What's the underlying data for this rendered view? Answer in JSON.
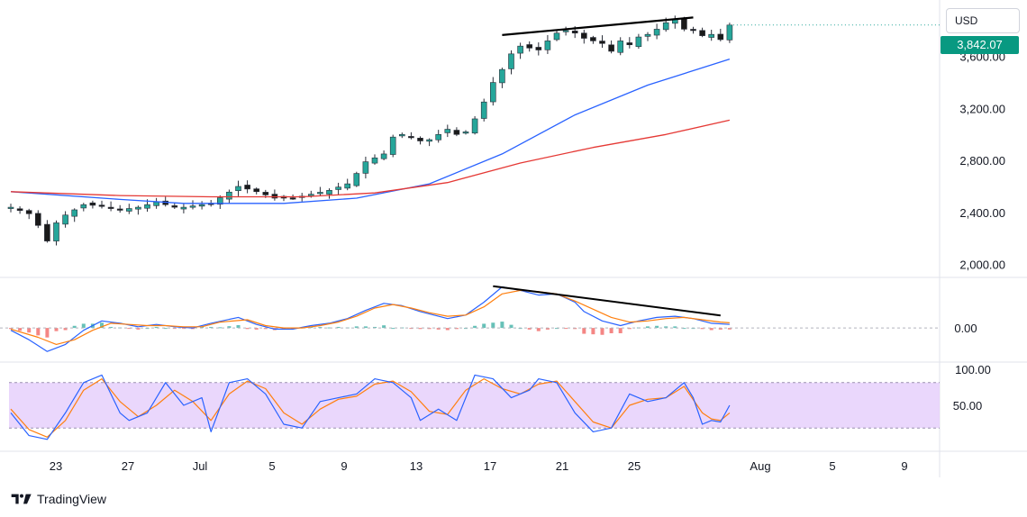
{
  "header": {
    "currency": "USD",
    "last_price": "3,842.07"
  },
  "brand": {
    "name": "TradingView",
    "logo_icon": "tradingview-logo-icon"
  },
  "colors": {
    "up": "#26a69a",
    "down": "#ef5350",
    "candle_body_down": "#1a1a1a",
    "ma_fast": "#2962ff",
    "ma_slow": "#e53935",
    "macd": "#2962ff",
    "signal": "#ff7f0e",
    "rsi_band": "#e6d0fb",
    "price_tag": "#089981",
    "trendline": "#000000"
  },
  "chart_data": [
    {
      "type": "candlestick",
      "title": "",
      "y_ticks": [
        "2,000.00",
        "2,400.00",
        "2,800.00",
        "3,200.00",
        "3,600.00"
      ],
      "ylim": [
        1900,
        4000
      ],
      "x_ticks": [
        "23",
        "27",
        "Jul",
        "5",
        "9",
        "13",
        "17",
        "21",
        "25",
        "Aug",
        "5",
        "9"
      ],
      "last_price": 3842.07,
      "close_path": [
        [
          0,
          2440
        ],
        [
          2,
          2390
        ],
        [
          3,
          2300
        ],
        [
          4,
          2180
        ],
        [
          5,
          2320
        ],
        [
          6,
          2380
        ],
        [
          8,
          2460
        ],
        [
          10,
          2450
        ],
        [
          12,
          2420
        ],
        [
          14,
          2440
        ],
        [
          16,
          2480
        ],
        [
          18,
          2440
        ],
        [
          19,
          2440
        ],
        [
          22,
          2470
        ],
        [
          25,
          2600
        ],
        [
          27,
          2560
        ],
        [
          29,
          2510
        ],
        [
          31,
          2510
        ],
        [
          33,
          2540
        ],
        [
          35,
          2570
        ],
        [
          37,
          2620
        ],
        [
          38,
          2700
        ],
        [
          39,
          2790
        ],
        [
          41,
          2850
        ],
        [
          42,
          2980
        ],
        [
          43,
          3000
        ],
        [
          45,
          2950
        ],
        [
          46,
          2960
        ],
        [
          48,
          3040
        ],
        [
          49,
          3000
        ],
        [
          50,
          3020
        ],
        [
          51,
          3120
        ],
        [
          52,
          3250
        ],
        [
          53,
          3400
        ],
        [
          54,
          3500
        ],
        [
          55,
          3620
        ],
        [
          56,
          3680
        ],
        [
          58,
          3650
        ],
        [
          59,
          3720
        ],
        [
          60,
          3780
        ],
        [
          61,
          3800
        ],
        [
          62,
          3780
        ],
        [
          63,
          3740
        ],
        [
          64,
          3720
        ],
        [
          65,
          3700
        ],
        [
          66,
          3640
        ],
        [
          67,
          3720
        ],
        [
          68,
          3690
        ],
        [
          69,
          3750
        ],
        [
          70,
          3770
        ],
        [
          71,
          3810
        ],
        [
          72,
          3860
        ],
        [
          73,
          3890
        ],
        [
          74,
          3810
        ],
        [
          75,
          3800
        ],
        [
          76,
          3760
        ],
        [
          77,
          3770
        ],
        [
          78,
          3730
        ],
        [
          79,
          3842
        ]
      ],
      "moving_averages": [
        {
          "points": [
            [
              0,
              2560
            ],
            [
              12,
              2500
            ],
            [
              19,
              2470
            ],
            [
              30,
              2470
            ],
            [
              38,
              2510
            ],
            [
              46,
              2620
            ],
            [
              54,
              2850
            ],
            [
              62,
              3150
            ],
            [
              70,
              3380
            ],
            [
              79,
              3580
            ]
          ]
        },
        {
          "points": [
            [
              0,
              2560
            ],
            [
              12,
              2530
            ],
            [
              22,
              2520
            ],
            [
              32,
              2520
            ],
            [
              40,
              2550
            ],
            [
              48,
              2630
            ],
            [
              56,
              2780
            ],
            [
              64,
              2900
            ],
            [
              72,
              3000
            ],
            [
              79,
              3110
            ]
          ]
        }
      ],
      "trendline": [
        [
          54,
          3765
        ],
        [
          75,
          3900
        ]
      ]
    },
    {
      "type": "macd",
      "zero_label": "0.00",
      "ylim": [
        -130,
        200
      ],
      "macd_line": [
        [
          0,
          -10
        ],
        [
          2,
          -50
        ],
        [
          4,
          -100
        ],
        [
          6,
          -70
        ],
        [
          8,
          -10
        ],
        [
          10,
          30
        ],
        [
          12,
          20
        ],
        [
          14,
          5
        ],
        [
          16,
          15
        ],
        [
          18,
          5
        ],
        [
          20,
          0
        ],
        [
          22,
          20
        ],
        [
          25,
          45
        ],
        [
          27,
          15
        ],
        [
          29,
          -5
        ],
        [
          31,
          -5
        ],
        [
          33,
          10
        ],
        [
          35,
          20
        ],
        [
          37,
          40
        ],
        [
          39,
          75
        ],
        [
          41,
          105
        ],
        [
          43,
          95
        ],
        [
          45,
          70
        ],
        [
          47,
          50
        ],
        [
          48,
          40
        ],
        [
          50,
          55
        ],
        [
          52,
          110
        ],
        [
          54,
          175
        ],
        [
          56,
          160
        ],
        [
          58,
          140
        ],
        [
          60,
          145
        ],
        [
          62,
          110
        ],
        [
          63,
          70
        ],
        [
          65,
          30
        ],
        [
          67,
          10
        ],
        [
          69,
          30
        ],
        [
          71,
          45
        ],
        [
          73,
          50
        ],
        [
          75,
          40
        ],
        [
          77,
          20
        ],
        [
          79,
          15
        ]
      ],
      "signal_line": [
        [
          0,
          -5
        ],
        [
          3,
          -40
        ],
        [
          5,
          -70
        ],
        [
          7,
          -50
        ],
        [
          9,
          -10
        ],
        [
          11,
          20
        ],
        [
          13,
          15
        ],
        [
          15,
          10
        ],
        [
          17,
          10
        ],
        [
          19,
          5
        ],
        [
          21,
          5
        ],
        [
          23,
          25
        ],
        [
          26,
          35
        ],
        [
          28,
          10
        ],
        [
          30,
          0
        ],
        [
          32,
          0
        ],
        [
          34,
          10
        ],
        [
          36,
          25
        ],
        [
          38,
          50
        ],
        [
          40,
          85
        ],
        [
          42,
          100
        ],
        [
          44,
          85
        ],
        [
          46,
          65
        ],
        [
          48,
          50
        ],
        [
          50,
          55
        ],
        [
          52,
          90
        ],
        [
          54,
          145
        ],
        [
          56,
          160
        ],
        [
          58,
          155
        ],
        [
          60,
          145
        ],
        [
          62,
          115
        ],
        [
          64,
          80
        ],
        [
          66,
          45
        ],
        [
          68,
          25
        ],
        [
          70,
          30
        ],
        [
          72,
          40
        ],
        [
          74,
          45
        ],
        [
          76,
          35
        ],
        [
          78,
          25
        ],
        [
          79,
          22
        ]
      ],
      "trendline": [
        [
          53,
          178
        ],
        [
          78,
          53
        ]
      ]
    },
    {
      "type": "stochastic",
      "y_ticks": [
        "100.00",
        "50.00"
      ],
      "ylim": [
        0,
        100
      ],
      "band": [
        20,
        80
      ],
      "k_line": [
        [
          0,
          40
        ],
        [
          2,
          10
        ],
        [
          4,
          5
        ],
        [
          6,
          40
        ],
        [
          8,
          80
        ],
        [
          10,
          90
        ],
        [
          12,
          40
        ],
        [
          13,
          30
        ],
        [
          15,
          40
        ],
        [
          17,
          80
        ],
        [
          19,
          50
        ],
        [
          21,
          60
        ],
        [
          22,
          15
        ],
        [
          24,
          80
        ],
        [
          26,
          85
        ],
        [
          28,
          65
        ],
        [
          30,
          25
        ],
        [
          32,
          20
        ],
        [
          34,
          55
        ],
        [
          36,
          60
        ],
        [
          38,
          65
        ],
        [
          40,
          85
        ],
        [
          42,
          80
        ],
        [
          44,
          60
        ],
        [
          45,
          30
        ],
        [
          47,
          45
        ],
        [
          49,
          30
        ],
        [
          51,
          90
        ],
        [
          53,
          85
        ],
        [
          55,
          60
        ],
        [
          57,
          70
        ],
        [
          58,
          85
        ],
        [
          60,
          80
        ],
        [
          62,
          40
        ],
        [
          64,
          15
        ],
        [
          66,
          20
        ],
        [
          68,
          65
        ],
        [
          70,
          55
        ],
        [
          72,
          60
        ],
        [
          74,
          80
        ],
        [
          75,
          60
        ],
        [
          76,
          25
        ],
        [
          77,
          30
        ],
        [
          78,
          28
        ],
        [
          79,
          50
        ]
      ],
      "d_line": [
        [
          0,
          45
        ],
        [
          2,
          18
        ],
        [
          4,
          8
        ],
        [
          6,
          30
        ],
        [
          8,
          70
        ],
        [
          10,
          85
        ],
        [
          12,
          55
        ],
        [
          14,
          35
        ],
        [
          16,
          50
        ],
        [
          18,
          70
        ],
        [
          20,
          55
        ],
        [
          22,
          30
        ],
        [
          24,
          65
        ],
        [
          26,
          82
        ],
        [
          28,
          72
        ],
        [
          30,
          40
        ],
        [
          32,
          25
        ],
        [
          34,
          45
        ],
        [
          36,
          58
        ],
        [
          38,
          62
        ],
        [
          40,
          78
        ],
        [
          42,
          82
        ],
        [
          44,
          68
        ],
        [
          46,
          42
        ],
        [
          48,
          38
        ],
        [
          50,
          70
        ],
        [
          52,
          85
        ],
        [
          54,
          72
        ],
        [
          56,
          65
        ],
        [
          58,
          78
        ],
        [
          60,
          82
        ],
        [
          62,
          55
        ],
        [
          64,
          28
        ],
        [
          66,
          20
        ],
        [
          68,
          50
        ],
        [
          70,
          58
        ],
        [
          72,
          60
        ],
        [
          74,
          75
        ],
        [
          76,
          40
        ],
        [
          77,
          32
        ],
        [
          78,
          30
        ],
        [
          79,
          40
        ]
      ]
    }
  ]
}
